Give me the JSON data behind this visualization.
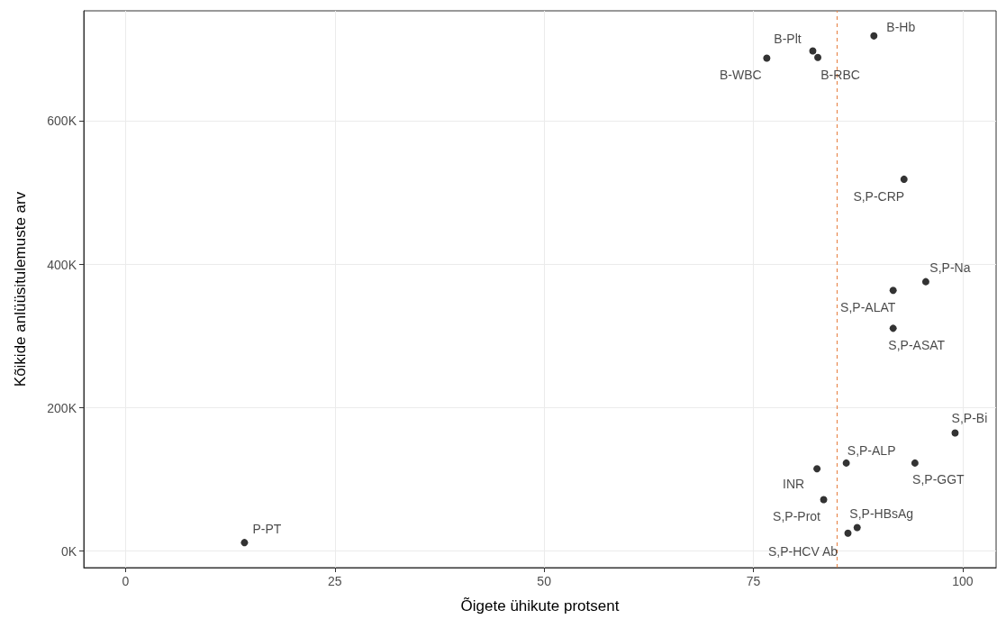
{
  "chart_data": {
    "type": "scatter",
    "xlabel": "Õigete ühikute protsent",
    "ylabel": "Kõikide anlüüsitulemuste arv",
    "xlim": [
      -5,
      104
    ],
    "xticks": [
      0,
      25,
      50,
      75,
      100
    ],
    "ylim": [
      -23000,
      754000
    ],
    "yticks": [
      {
        "value": 0,
        "label": "0K"
      },
      {
        "value": 200000,
        "label": "200K"
      },
      {
        "value": 400000,
        "label": "400K"
      },
      {
        "value": 600000,
        "label": "600K"
      }
    ],
    "grid": true,
    "marker": "circle",
    "series": [
      {
        "color": "#000000",
        "x": [
          14.2,
          89.4,
          82.1,
          82.7,
          76.6,
          93.0,
          95.6,
          91.7,
          91.7,
          99.1,
          86.1,
          94.3,
          82.6,
          83.4,
          87.4,
          86.3
        ],
        "values": [
          12000,
          719000,
          698000,
          689000,
          688000,
          519000,
          376000,
          364000,
          311000,
          165000,
          123000,
          123000,
          115000,
          72000,
          33000,
          25000
        ]
      }
    ],
    "annotations": [
      {
        "text": "P-PT",
        "x": 14.2,
        "y": 12000
      },
      {
        "text": "B-Hb",
        "x": 89.4,
        "y": 719000
      },
      {
        "text": "B-Plt",
        "x": 82.1,
        "y": 698000
      },
      {
        "text": "B-RBC",
        "x": 82.7,
        "y": 689000
      },
      {
        "text": "B-WBC",
        "x": 76.6,
        "y": 688000
      },
      {
        "text": "S,P-CRP",
        "x": 93.0,
        "y": 519000
      },
      {
        "text": "S,P-Na",
        "x": 95.6,
        "y": 376000
      },
      {
        "text": "S,P-ALAT",
        "x": 91.7,
        "y": 364000
      },
      {
        "text": "S,P-ASAT",
        "x": 91.7,
        "y": 311000
      },
      {
        "text": "S,P-Bi",
        "x": 99.1,
        "y": 165000
      },
      {
        "text": "S,P-ALP",
        "x": 86.1,
        "y": 123000
      },
      {
        "text": "S,P-GGT",
        "x": 94.3,
        "y": 123000
      },
      {
        "text": "INR",
        "x": 82.6,
        "y": 115000
      },
      {
        "text": "S,P-Prot",
        "x": 83.4,
        "y": 72000
      },
      {
        "text": "S,P-HBsAg",
        "x": 87.4,
        "y": 33000
      },
      {
        "text": "S,P-HCV Ab",
        "x": 86.3,
        "y": 25000
      }
    ],
    "ref_lines": [
      {
        "axis": "x",
        "value": 85.0,
        "color": "#e8894f",
        "line_style": "dashed"
      }
    ]
  }
}
